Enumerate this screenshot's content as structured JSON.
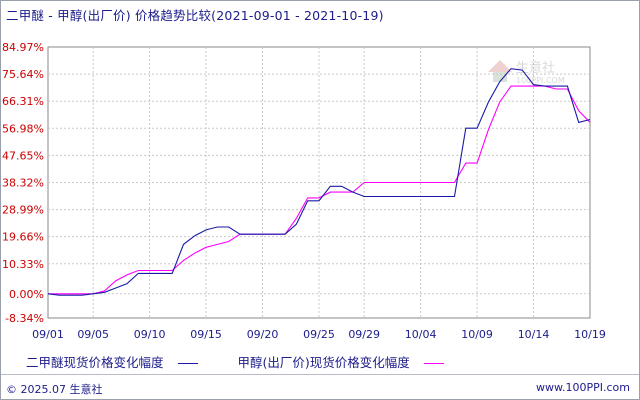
{
  "header": {
    "title": "二甲醚 - 甲醇(出厂价) 价格趋势比较(2021-09-01 - 2021-10-19)"
  },
  "watermark": {
    "name": "生意社",
    "url": "100PPI.COM",
    "color": "#d9d9d9"
  },
  "footer": {
    "left": "© 2025.07 生意社",
    "right": "www.100PPI.com"
  },
  "colors": {
    "series1": "#1a1aa6",
    "series2": "#ff00ff",
    "axis_label": "#cc0000",
    "grid": "#c8c8c8"
  },
  "chart_data": {
    "type": "line",
    "title": "二甲醚 - 甲醇(出厂价) 价格趋势比较(2021-09-01 - 2021-10-19)",
    "xlabel": "",
    "ylabel": "",
    "x_tick_labels": [
      "09/01",
      "09/05",
      "09/10",
      "09/15",
      "09/20",
      "09/25",
      "09/29",
      "10/04",
      "10/09",
      "10/14",
      "10/19"
    ],
    "y_tick_labels": [
      "84.97%",
      "75.64%",
      "66.31%",
      "56.98%",
      "47.65%",
      "38.32%",
      "28.99%",
      "19.66%",
      "10.33%",
      "0.00%",
      "-8.34%"
    ],
    "y_ticks": [
      84.97,
      75.64,
      66.31,
      56.98,
      47.65,
      38.32,
      28.99,
      19.66,
      10.33,
      0.0,
      -8.34
    ],
    "ylim": [
      -8.34,
      84.97
    ],
    "grid": true,
    "legend_position": "bottom-left",
    "series": [
      {
        "name": "二甲醚现货价格变化幅度",
        "points": [
          [
            "2021-09-01",
            0
          ],
          [
            "2021-09-02",
            -0.5
          ],
          [
            "2021-09-03",
            -0.5
          ],
          [
            "2021-09-04",
            -0.5
          ],
          [
            "2021-09-05",
            0
          ],
          [
            "2021-09-06",
            0.5
          ],
          [
            "2021-09-07",
            2
          ],
          [
            "2021-09-08",
            3.5
          ],
          [
            "2021-09-09",
            7
          ],
          [
            "2021-09-10",
            7
          ],
          [
            "2021-09-11",
            7
          ],
          [
            "2021-09-12",
            7
          ],
          [
            "2021-09-13",
            17
          ],
          [
            "2021-09-14",
            20
          ],
          [
            "2021-09-15",
            22
          ],
          [
            "2021-09-16",
            23
          ],
          [
            "2021-09-17",
            23
          ],
          [
            "2021-09-18",
            20.5
          ],
          [
            "2021-09-19",
            20.5
          ],
          [
            "2021-09-20",
            20.5
          ],
          [
            "2021-09-21",
            20.5
          ],
          [
            "2021-09-22",
            20.5
          ],
          [
            "2021-09-23",
            24
          ],
          [
            "2021-09-24",
            32
          ],
          [
            "2021-09-25",
            32
          ],
          [
            "2021-09-26",
            37
          ],
          [
            "2021-09-27",
            37
          ],
          [
            "2021-09-28",
            35
          ],
          [
            "2021-09-29",
            33.5
          ],
          [
            "2021-09-30",
            33.5
          ],
          [
            "2021-10-01",
            33.5
          ],
          [
            "2021-10-02",
            33.5
          ],
          [
            "2021-10-03",
            33.5
          ],
          [
            "2021-10-04",
            33.5
          ],
          [
            "2021-10-05",
            33.5
          ],
          [
            "2021-10-06",
            33.5
          ],
          [
            "2021-10-07",
            33.5
          ],
          [
            "2021-10-08",
            57
          ],
          [
            "2021-10-09",
            57
          ],
          [
            "2021-10-10",
            66
          ],
          [
            "2021-10-11",
            73
          ],
          [
            "2021-10-12",
            77.5
          ],
          [
            "2021-10-13",
            77
          ],
          [
            "2021-10-14",
            72
          ],
          [
            "2021-10-15",
            71.5
          ],
          [
            "2021-10-16",
            71.5
          ],
          [
            "2021-10-17",
            71.5
          ],
          [
            "2021-10-18",
            59
          ],
          [
            "2021-10-19",
            60
          ]
        ]
      },
      {
        "name": "甲醇(出厂价)现货价格变化幅度",
        "points": [
          [
            "2021-09-01",
            0
          ],
          [
            "2021-09-02",
            0
          ],
          [
            "2021-09-03",
            0
          ],
          [
            "2021-09-04",
            0
          ],
          [
            "2021-09-05",
            0
          ],
          [
            "2021-09-06",
            1
          ],
          [
            "2021-09-07",
            4.5
          ],
          [
            "2021-09-08",
            6.5
          ],
          [
            "2021-09-09",
            8
          ],
          [
            "2021-09-10",
            8
          ],
          [
            "2021-09-11",
            8
          ],
          [
            "2021-09-12",
            8
          ],
          [
            "2021-09-13",
            11.5
          ],
          [
            "2021-09-14",
            14
          ],
          [
            "2021-09-15",
            16
          ],
          [
            "2021-09-16",
            17
          ],
          [
            "2021-09-17",
            18
          ],
          [
            "2021-09-18",
            20.5
          ],
          [
            "2021-09-19",
            20.5
          ],
          [
            "2021-09-20",
            20.5
          ],
          [
            "2021-09-21",
            20.5
          ],
          [
            "2021-09-22",
            20.5
          ],
          [
            "2021-09-23",
            26
          ],
          [
            "2021-09-24",
            33
          ],
          [
            "2021-09-25",
            33
          ],
          [
            "2021-09-26",
            35
          ],
          [
            "2021-09-27",
            35
          ],
          [
            "2021-09-28",
            35
          ],
          [
            "2021-09-29",
            38.3
          ],
          [
            "2021-09-30",
            38.3
          ],
          [
            "2021-10-01",
            38.3
          ],
          [
            "2021-10-02",
            38.3
          ],
          [
            "2021-10-03",
            38.3
          ],
          [
            "2021-10-04",
            38.3
          ],
          [
            "2021-10-05",
            38.3
          ],
          [
            "2021-10-06",
            38.3
          ],
          [
            "2021-10-07",
            38.3
          ],
          [
            "2021-10-08",
            45
          ],
          [
            "2021-10-09",
            45
          ],
          [
            "2021-10-10",
            56.5
          ],
          [
            "2021-10-11",
            66
          ],
          [
            "2021-10-12",
            71.5
          ],
          [
            "2021-10-13",
            71.5
          ],
          [
            "2021-10-14",
            71.5
          ],
          [
            "2021-10-15",
            71.5
          ],
          [
            "2021-10-16",
            70.5
          ],
          [
            "2021-10-17",
            70.5
          ],
          [
            "2021-10-18",
            63
          ],
          [
            "2021-10-19",
            59
          ]
        ]
      }
    ]
  }
}
